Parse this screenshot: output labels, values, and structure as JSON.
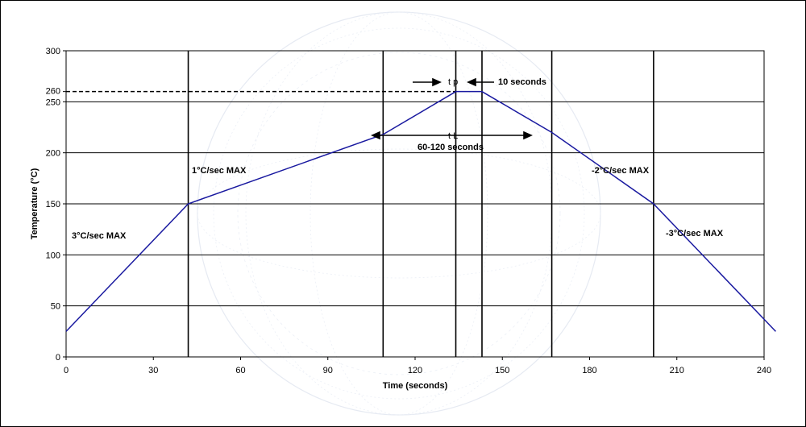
{
  "chart_data": {
    "type": "line",
    "xlabel": "Time (seconds)",
    "ylabel": "Temperature (°C)",
    "xlim": [
      0,
      240
    ],
    "ylim": [
      0,
      300
    ],
    "x_ticks": [
      0,
      30,
      60,
      90,
      120,
      150,
      180,
      210,
      240
    ],
    "y_ticks": [
      0,
      50,
      100,
      150,
      200,
      250,
      300
    ],
    "extra_y_tick": 260,
    "grid": true,
    "vertical_markers": [
      42,
      109,
      134,
      143,
      167,
      202
    ],
    "series": [
      {
        "color": "#1a1aa0",
        "x": [
          0,
          42,
          109,
          134,
          143,
          167,
          202,
          244
        ],
        "y": [
          25,
          150,
          218,
          260,
          260,
          220,
          150,
          25
        ]
      }
    ],
    "peak_reference_line": {
      "y": 260,
      "x_end": 134,
      "style": "dashed"
    },
    "annotations": {
      "ramp1": "3°C/sec MAX",
      "ramp2": "1°C/sec MAX",
      "cool1": "-2°C/sec MAX",
      "cool2": "-3°C/sec MAX",
      "tp_label": "t p",
      "tp_value": "10 seconds",
      "tl_label": "t L",
      "tl_value": "60-120 seconds"
    }
  }
}
